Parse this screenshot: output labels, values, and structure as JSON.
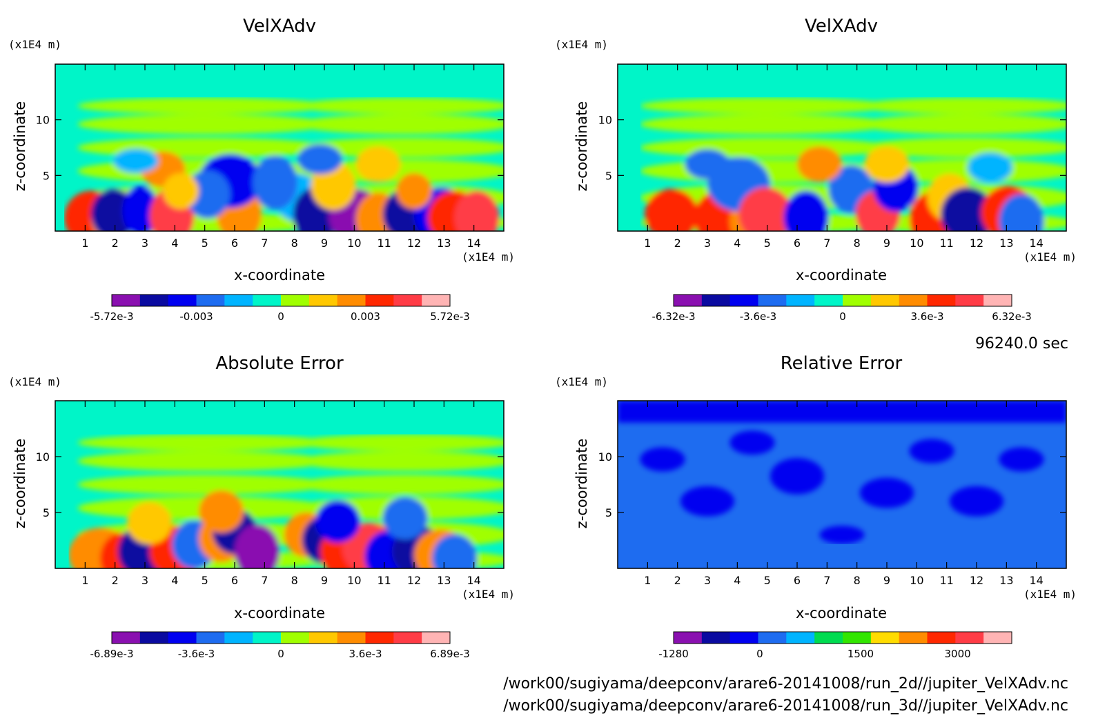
{
  "footer": {
    "time": "96240.0 sec",
    "file1": "/work00/sugiyama/deepconv/arare6-20141008/run_2d//jupiter_VelXAdv.nc",
    "file2": "/work00/sugiyama/deepconv/arare6-20141008/run_3d//jupiter_VelXAdv.nc"
  },
  "chart_data": [
    {
      "type": "heatmap",
      "title": "VelXAdv",
      "xlabel": "x-coordinate",
      "ylabel": "z-coordinate",
      "x_unit": "(x1E4 m)",
      "y_unit": "(x1E4 m)",
      "xlim": [
        0,
        15
      ],
      "ylim": [
        0,
        15
      ],
      "x_ticks": [
        "1",
        "2",
        "3",
        "4",
        "5",
        "6",
        "7",
        "8",
        "9",
        "10",
        "11",
        "12",
        "13",
        "14"
      ],
      "y_ticks": [
        "5",
        "10"
      ],
      "colorbar_labels": [
        "-5.72e-3",
        "-0.003",
        "0",
        "0.003",
        "5.72e-3"
      ],
      "colorbar_colors": [
        "#8a10b0",
        "#0a0aa0",
        "#0000f0",
        "#1e6cf0",
        "#00b4ff",
        "#00f5c8",
        "#a0ff00",
        "#ffc800",
        "#ff8c00",
        "#ff2800",
        "#ff3c46",
        "#ffb4b4"
      ],
      "field_range": [
        -0.00572,
        0.00572
      ]
    },
    {
      "type": "heatmap",
      "title": "VelXAdv",
      "xlabel": "x-coordinate",
      "ylabel": "z-coordinate",
      "x_unit": "(x1E4 m)",
      "y_unit": "(x1E4 m)",
      "xlim": [
        0,
        15
      ],
      "ylim": [
        0,
        15
      ],
      "x_ticks": [
        "1",
        "2",
        "3",
        "4",
        "5",
        "6",
        "7",
        "8",
        "9",
        "10",
        "11",
        "12",
        "13",
        "14"
      ],
      "y_ticks": [
        "5",
        "10"
      ],
      "colorbar_labels": [
        "-6.32e-3",
        "-3.6e-3",
        "0",
        "3.6e-3",
        "6.32e-3"
      ],
      "colorbar_colors": [
        "#8a10b0",
        "#0a0aa0",
        "#0000f0",
        "#1e6cf0",
        "#00b4ff",
        "#00f5c8",
        "#a0ff00",
        "#ffc800",
        "#ff8c00",
        "#ff2800",
        "#ff3c46",
        "#ffb4b4"
      ],
      "field_range": [
        -0.00632,
        0.00632
      ]
    },
    {
      "type": "heatmap",
      "title": "Absolute Error",
      "xlabel": "x-coordinate",
      "ylabel": "z-coordinate",
      "x_unit": "(x1E4 m)",
      "y_unit": "(x1E4 m)",
      "xlim": [
        0,
        15
      ],
      "ylim": [
        0,
        15
      ],
      "x_ticks": [
        "1",
        "2",
        "3",
        "4",
        "5",
        "6",
        "7",
        "8",
        "9",
        "10",
        "11",
        "12",
        "13",
        "14"
      ],
      "y_ticks": [
        "5",
        "10"
      ],
      "colorbar_labels": [
        "-6.89e-3",
        "-3.6e-3",
        "0",
        "3.6e-3",
        "6.89e-3"
      ],
      "colorbar_colors": [
        "#8a10b0",
        "#0a0aa0",
        "#0000f0",
        "#1e6cf0",
        "#00b4ff",
        "#00f5c8",
        "#a0ff00",
        "#ffc800",
        "#ff8c00",
        "#ff2800",
        "#ff3c46",
        "#ffb4b4"
      ],
      "field_range": [
        -0.00689,
        0.00689
      ]
    },
    {
      "type": "heatmap",
      "title": "Relative Error",
      "xlabel": "x-coordinate",
      "ylabel": "z-coordinate",
      "x_unit": "(x1E4 m)",
      "y_unit": "(x1E4 m)",
      "xlim": [
        0,
        15
      ],
      "ylim": [
        0,
        15
      ],
      "x_ticks": [
        "1",
        "2",
        "3",
        "4",
        "5",
        "6",
        "7",
        "8",
        "9",
        "10",
        "11",
        "12",
        "13",
        "14"
      ],
      "y_ticks": [
        "5",
        "10"
      ],
      "colorbar_labels": [
        "-1280",
        "0",
        "1500",
        "3000"
      ],
      "colorbar_colors": [
        "#8a10b0",
        "#0a0aa0",
        "#0000f0",
        "#1e6cf0",
        "#00b4ff",
        "#00dc50",
        "#32e600",
        "#ffdc00",
        "#ff8c00",
        "#ff2800",
        "#ff3c46",
        "#ffb4b4"
      ],
      "field_range": [
        -1280,
        3800
      ]
    }
  ]
}
